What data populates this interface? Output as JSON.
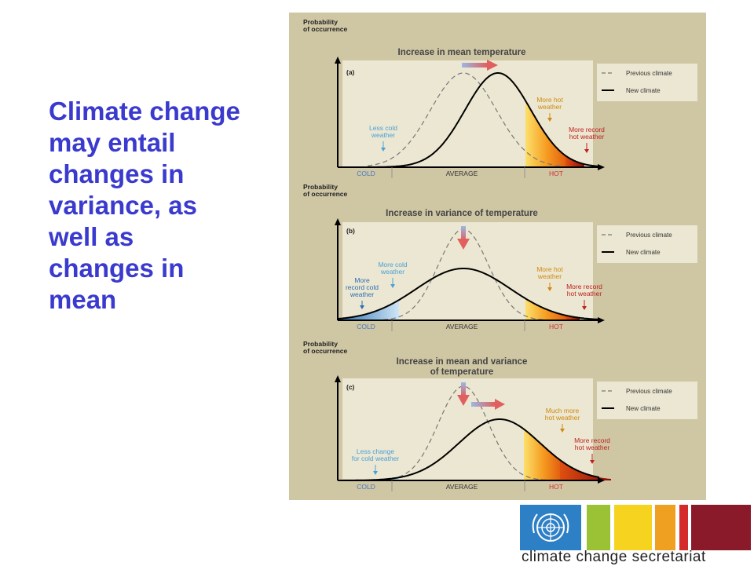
{
  "slide": {
    "text": "Climate change may entail changes in variance, as well as changes in mean"
  },
  "figure": {
    "y_axis_label_line1": "Probability",
    "y_axis_label_line2": "of occurrence",
    "x_ticks": [
      "COLD",
      "AVERAGE",
      "HOT"
    ],
    "legend": {
      "previous": "Previous climate",
      "new": "New climate"
    },
    "panels": [
      {
        "letter": "(a)",
        "title": [
          "Increase in mean temperature"
        ],
        "annotations": {
          "cold": [
            "Less cold",
            "weather"
          ],
          "hot": [
            "More hot",
            "weather"
          ],
          "record_hot": [
            "More record",
            "hot weather"
          ]
        }
      },
      {
        "letter": "(b)",
        "title": [
          "Increase in variance of temperature"
        ],
        "annotations": {
          "record_cold": [
            "More",
            "record cold",
            "weather"
          ],
          "cold": [
            "More cold",
            "weather"
          ],
          "hot": [
            "More hot",
            "weather"
          ],
          "record_hot": [
            "More record",
            "hot weather"
          ]
        }
      },
      {
        "letter": "(c)",
        "title": [
          "Increase in mean and variance",
          "of temperature"
        ],
        "annotations": {
          "cold": [
            "Less change",
            "for cold weather"
          ],
          "hot": [
            "Much more",
            "hot weather"
          ],
          "record_hot": [
            "More record",
            "hot weather"
          ]
        }
      }
    ],
    "colors": {
      "cold": "#4a90c8",
      "hot": "#e87a10",
      "record": "#c02020",
      "previous": "#777777",
      "new": "#000000"
    }
  },
  "logo": {
    "caption": "climate change secretariat",
    "colors": {
      "un": "#2d7fc6",
      "green": "#9bc234",
      "yellow": "#f6d31e",
      "orange": "#f0a020",
      "red": "#d42a2a",
      "maroon": "#8a1a2a"
    }
  }
}
